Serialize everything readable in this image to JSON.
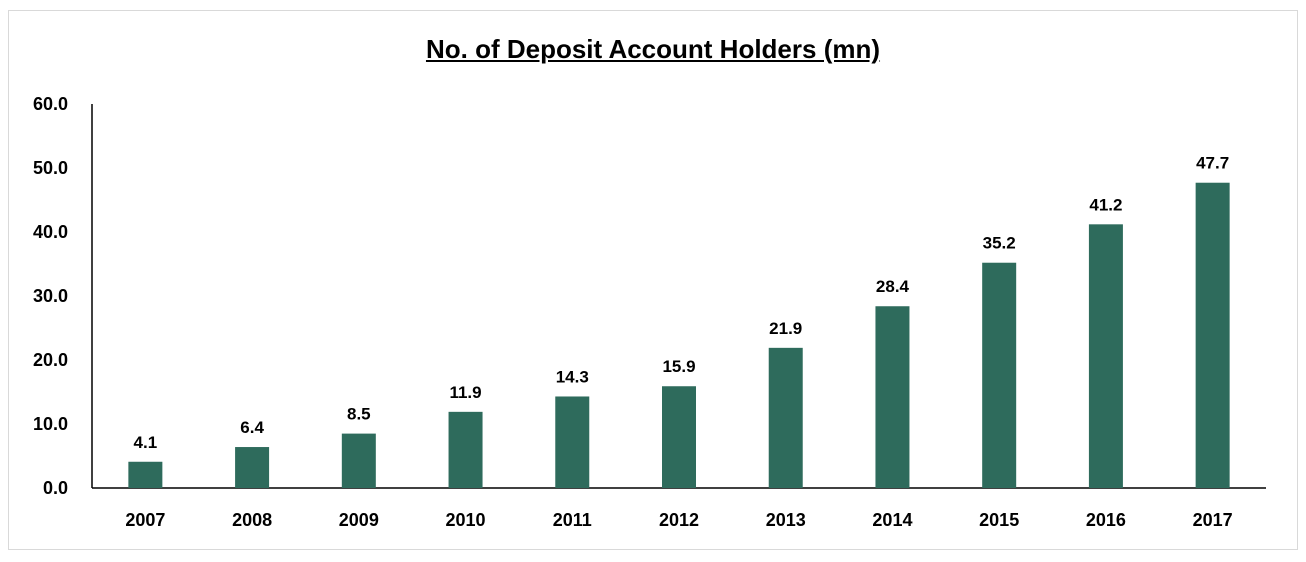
{
  "chart_data": {
    "type": "bar",
    "title": "No. of Deposit  Account Holders (mn)",
    "xlabel": "",
    "ylabel": "",
    "categories": [
      "2007",
      "2008",
      "2009",
      "2010",
      "2011",
      "2012",
      "2013",
      "2014",
      "2015",
      "2016",
      "2017"
    ],
    "values": [
      4.1,
      6.4,
      8.5,
      11.9,
      14.3,
      15.9,
      21.9,
      28.4,
      35.2,
      41.2,
      47.7
    ],
    "value_labels": [
      "4.1",
      "6.4",
      "8.5",
      "11.9",
      "14.3",
      "15.9",
      "21.9",
      "28.4",
      "35.2",
      "41.2",
      "47.7"
    ],
    "y_ticks": [
      "0.0",
      "10.0",
      "20.0",
      "30.0",
      "40.0",
      "50.0",
      "60.0"
    ],
    "ylim": [
      0,
      60
    ],
    "grid": false,
    "legend": "none",
    "bar_color": "#2e6b5c"
  }
}
